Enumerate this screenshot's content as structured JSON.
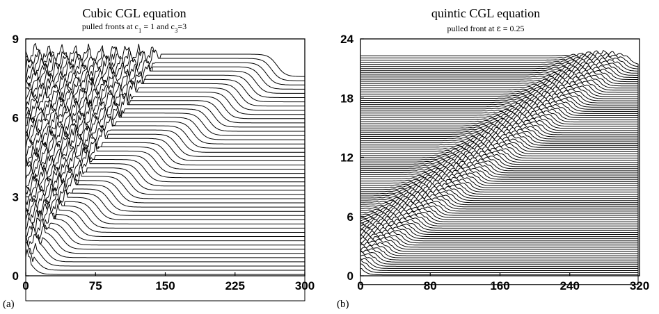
{
  "chart_data": [
    {
      "type": "line",
      "panel_label": "(a)",
      "title": "Cubic  CGL equation",
      "subtitle_parts": {
        "text": "pulled fronts at c",
        "sub1": "1",
        "mid": " = 1 and c",
        "sub2": "3",
        "tail": "=3"
      },
      "xlim": [
        0,
        300
      ],
      "ylim": [
        0,
        9
      ],
      "xticks": [
        "0",
        "75",
        "150",
        "225",
        "300"
      ],
      "yticks": [
        "0",
        "3",
        "6",
        "9"
      ],
      "grid": false,
      "series_description": "stacked space-time plot of |A|: 48 successive profiles offset vertically",
      "trace_count": 48,
      "trace_offset": 0.16,
      "front_positions": {
        "t_start": 0,
        "x_start": 5,
        "x_end": 270,
        "step_height": 0.85
      },
      "chaotic_region_boundary": {
        "x_start": 5,
        "x_end": 145
      }
    },
    {
      "type": "line",
      "panel_label": "(b)",
      "title": "quintic CGL equation",
      "subtitle_parts": {
        "text": "pulled front at ",
        "epsilon": "ε",
        "tail": " = 0.25"
      },
      "xlim": [
        0,
        320
      ],
      "ylim": [
        0,
        24
      ],
      "xticks": [
        "0",
        "80",
        "160",
        "240",
        "320"
      ],
      "yticks": [
        "0",
        "6",
        "12",
        "18",
        "24"
      ],
      "grid": false,
      "series_description": "stacked space-time plot: 100 successive profiles offset vertically",
      "trace_count": 100,
      "trace_offset": 0.215,
      "front_positions": {
        "x_start": 3,
        "x_end": 310
      }
    }
  ]
}
